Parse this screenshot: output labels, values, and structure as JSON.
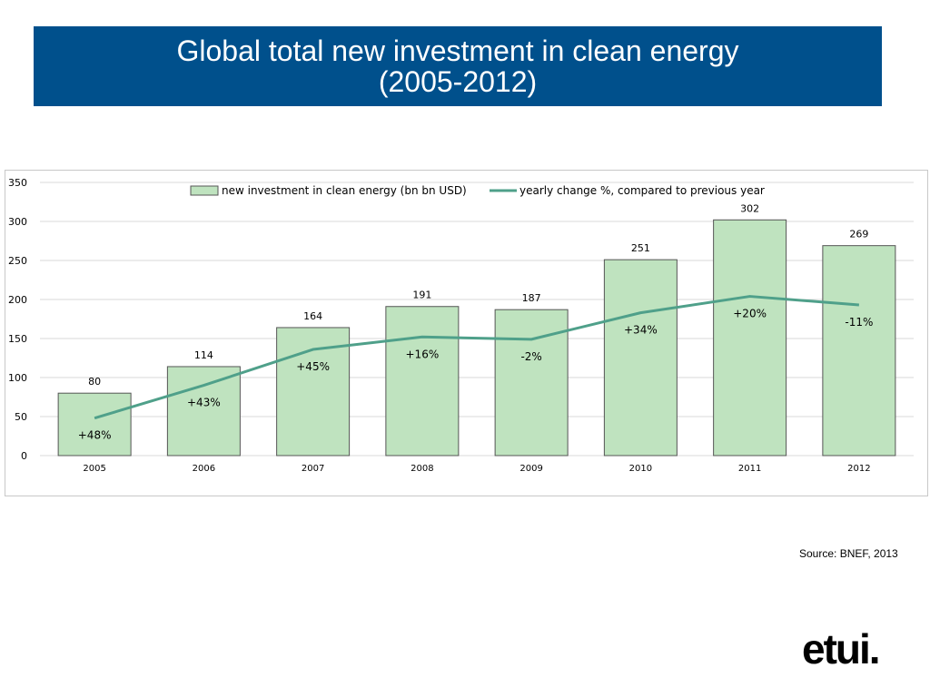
{
  "title": {
    "line1": "Global total new investment in clean energy",
    "line2": "(2005-2012)"
  },
  "source": "Source: BNEF, 2013",
  "logo": "etui.",
  "colors": {
    "banner": "#00508c",
    "bar_fill": "#bfe3bf",
    "bar_stroke": "#555555",
    "line": "#4fa08a"
  },
  "chart_data": {
    "type": "bar",
    "categories": [
      "2005",
      "2006",
      "2007",
      "2008",
      "2009",
      "2010",
      "2011",
      "2012"
    ],
    "series": [
      {
        "name": "new investment in clean energy (bn bn USD)",
        "type": "bar",
        "values": [
          80,
          114,
          164,
          191,
          187,
          251,
          302,
          269
        ],
        "data_labels": [
          "80",
          "114",
          "164",
          "191",
          "187",
          "251",
          "302",
          "269"
        ]
      },
      {
        "name": "yearly change %, compared to previous year",
        "type": "line",
        "values": [
          48,
          90,
          136,
          152,
          149,
          183,
          204,
          193
        ],
        "data_labels": [
          "+48%",
          "+43%",
          "+45%",
          "+16%",
          "-2%",
          "+34%",
          "+20%",
          "-11%"
        ]
      }
    ],
    "ylim": [
      0,
      350
    ],
    "yticks": [
      0,
      50,
      100,
      150,
      200,
      250,
      300,
      350
    ],
    "grid": true,
    "legend": "top"
  }
}
